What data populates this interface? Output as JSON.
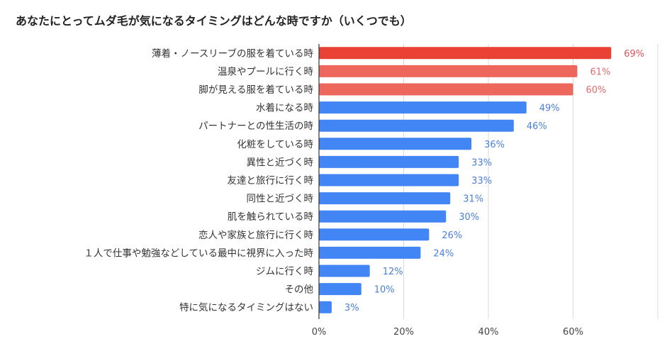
{
  "chart_data": {
    "type": "bar",
    "orientation": "horizontal",
    "title": "あなたにとってムダ毛が気になるタイミングはどんな時ですか（いくつでも）",
    "categories": [
      "薄着・ノースリーブの服を着ている時",
      "温泉やプールに行く時",
      "脚が見える服を着ている時",
      "水着になる時",
      "パートナーとの性生活の時",
      "化粧をしている時",
      "異性と近づく時",
      "友達と旅行に行く時",
      "同性と近づく時",
      "肌を触られている時",
      "恋人や家族と旅行に行く時",
      "１人で仕事や勉強などしている最中に視界に入った時",
      "ジムに行く時",
      "その他",
      "特に気になるタイミングはない"
    ],
    "values": [
      69,
      61,
      60,
      49,
      46,
      36,
      33,
      33,
      31,
      30,
      26,
      24,
      12,
      10,
      3
    ],
    "value_labels": [
      "69%",
      "61%",
      "60%",
      "49%",
      "46%",
      "36%",
      "33%",
      "33%",
      "31%",
      "30%",
      "26%",
      "24%",
      "12%",
      "10%",
      "3%"
    ],
    "bar_colors": [
      "#e94235",
      "#ee675c",
      "#ee675c",
      "#4285f4",
      "#4285f4",
      "#4285f4",
      "#4285f4",
      "#4285f4",
      "#4285f4",
      "#4285f4",
      "#4285f4",
      "#4285f4",
      "#4285f4",
      "#4285f4",
      "#4285f4"
    ],
    "label_colors": [
      "#d9545a",
      "#e06c6c",
      "#e06c6c",
      "#4a7fdc",
      "#4a7fdc",
      "#4a7fdc",
      "#4a7fdc",
      "#4a7fdc",
      "#4a7fdc",
      "#4a7fdc",
      "#4a7fdc",
      "#4a7fdc",
      "#4a7fdc",
      "#4a7fdc",
      "#4a7fdc"
    ],
    "xlim": [
      0,
      80
    ],
    "xticks": [
      0,
      20,
      40,
      60
    ],
    "xtick_labels": [
      "0%",
      "20%",
      "40%",
      "60%"
    ],
    "grid": true,
    "legend": "none"
  }
}
